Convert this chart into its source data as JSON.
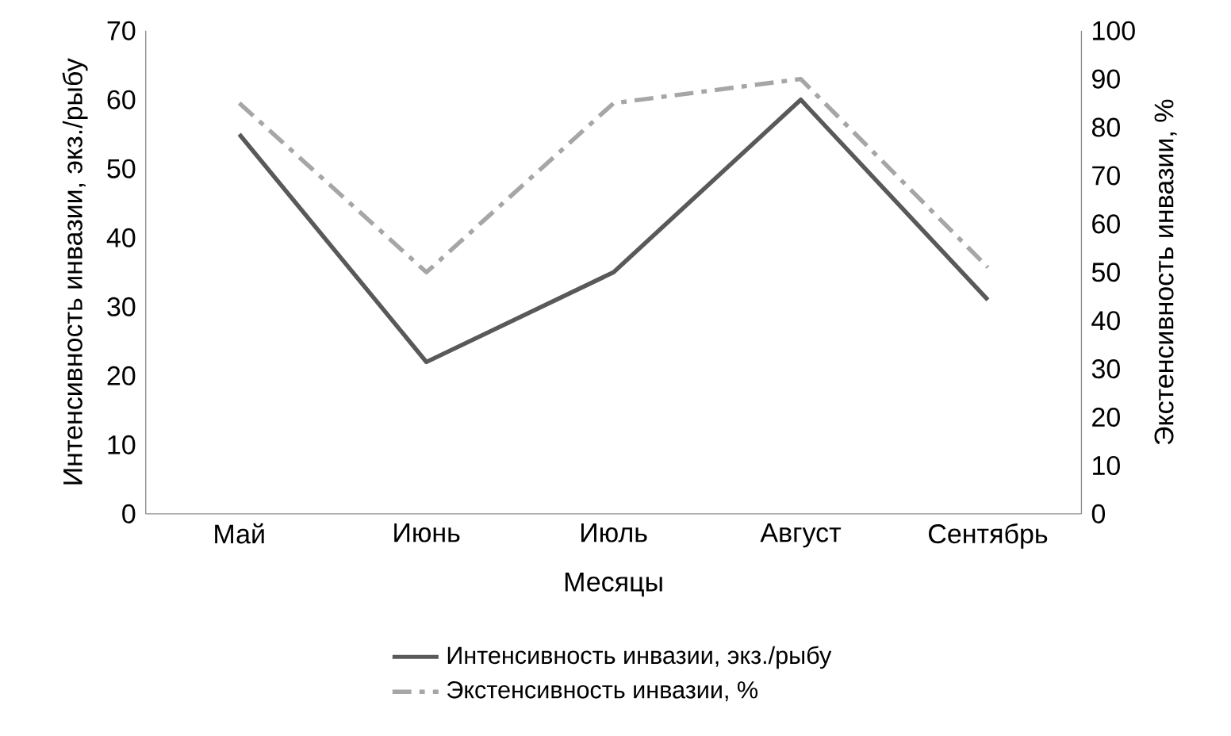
{
  "chart_data": {
    "type": "line",
    "xlabel": "Месяцы",
    "ylabel": "Интенсивность инвазии, экз./рыбу",
    "y2label": "Экстенсивность инвазии, %",
    "categories": [
      "Май",
      "Июнь",
      "Июль",
      "Август",
      "Сентябрь"
    ],
    "series": [
      {
        "name": "Интенсивность инвазии, экз./рыбу",
        "color": "#595959",
        "values": [
          55,
          22,
          35,
          60,
          31
        ],
        "line_style": "solid"
      },
      {
        "name": "Экстенсивность инвазии, %",
        "color": "#a6a6a6",
        "values": [
          85,
          50,
          85,
          90,
          51
        ],
        "line_style": "dashdot",
        "axis": "y2"
      }
    ],
    "ylim": [
      0,
      70
    ],
    "yticks": [
      0,
      10,
      20,
      30,
      40,
      50,
      60,
      70
    ],
    "y2lim": [
      0,
      100
    ],
    "y2ticks": [
      0,
      10,
      20,
      30,
      40,
      50,
      60,
      70,
      80,
      90,
      100
    ],
    "legend": "bottom",
    "marker": "none",
    "grid": false
  }
}
